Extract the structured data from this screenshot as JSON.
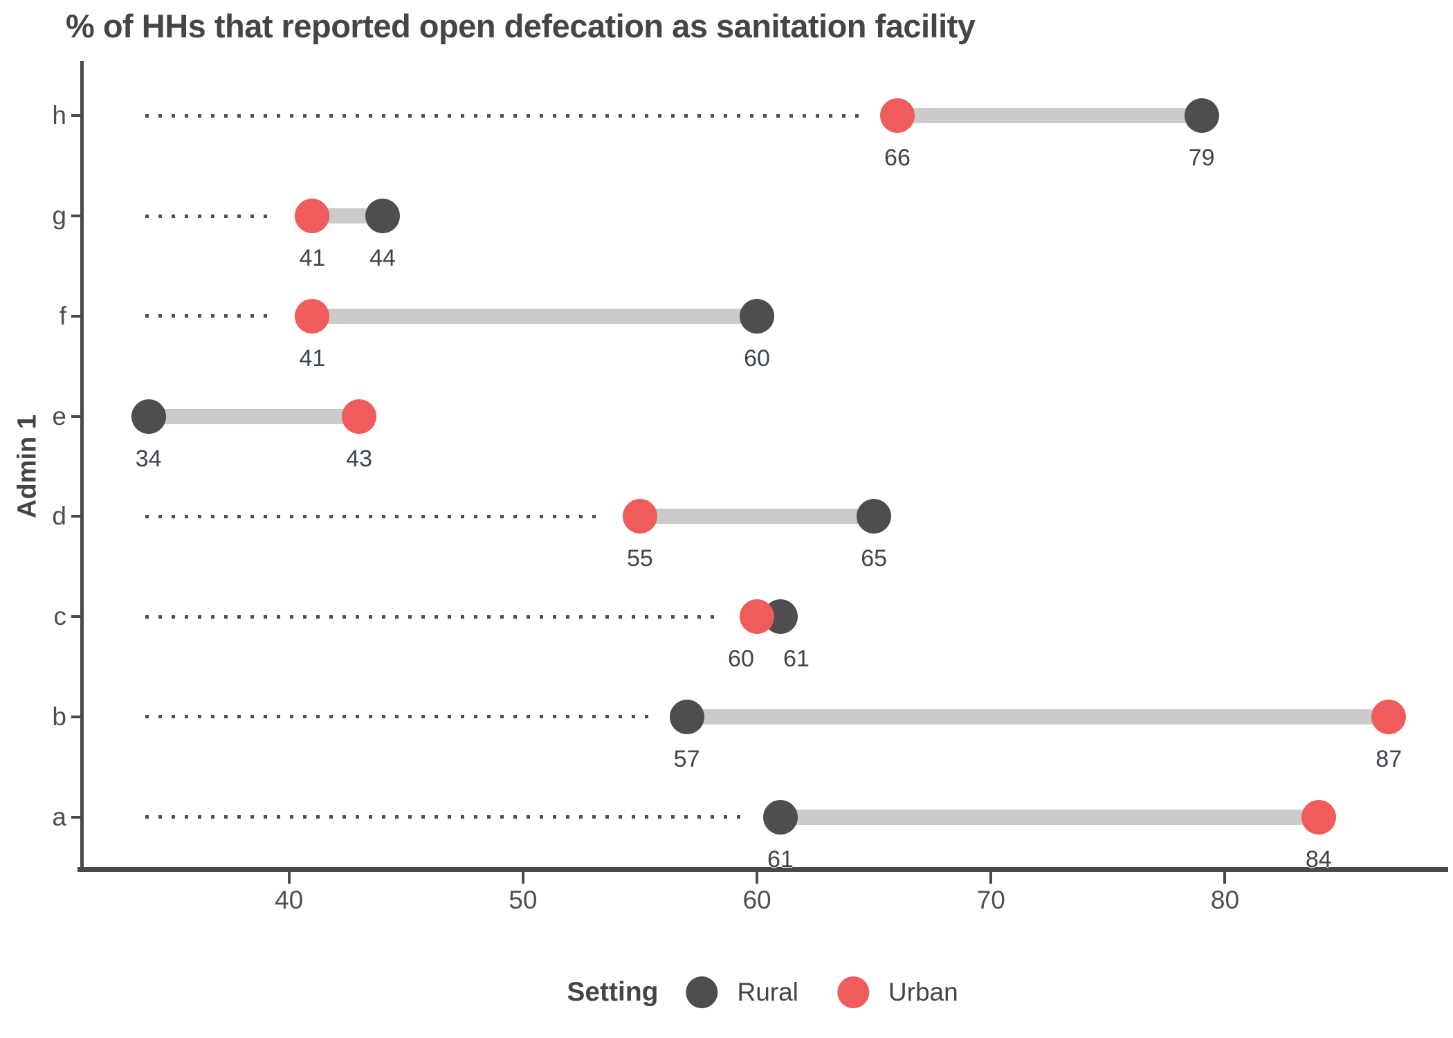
{
  "chart_data": {
    "type": "dumbbell",
    "orientation": "horizontal",
    "title": "% of HHs that reported open defecation as sanitation facility",
    "xlabel": "",
    "ylabel": "Admin 1",
    "categories": [
      "h",
      "g",
      "f",
      "e",
      "d",
      "c",
      "b",
      "a"
    ],
    "series": [
      {
        "name": "Rural",
        "color": "#4e4e50",
        "values": [
          79,
          44,
          60,
          34,
          65,
          61,
          57,
          61
        ]
      },
      {
        "name": "Urban",
        "color": "#f05b5b",
        "values": [
          66,
          41,
          41,
          43,
          55,
          60,
          87,
          84
        ]
      }
    ],
    "value_labels_shown": true,
    "x_axis": {
      "ticks": [
        "40",
        "50",
        "60",
        "70",
        "80"
      ],
      "tick_values": [
        40,
        50,
        60,
        70,
        80
      ],
      "domain": [
        31.2,
        89.3
      ]
    },
    "leader_start_value": 34,
    "grid": false,
    "legend": {
      "title": "Setting",
      "position": "bottom",
      "entries": [
        "Rural",
        "Urban"
      ]
    },
    "styles": {
      "connector_color": "#cbcbcb",
      "leader_color": "#4f4f4f",
      "axis_color": "#4a4a4a",
      "tick_text_color": "#4f4f4f",
      "value_label_color": "#3d4450",
      "title_color": "#454547"
    }
  }
}
